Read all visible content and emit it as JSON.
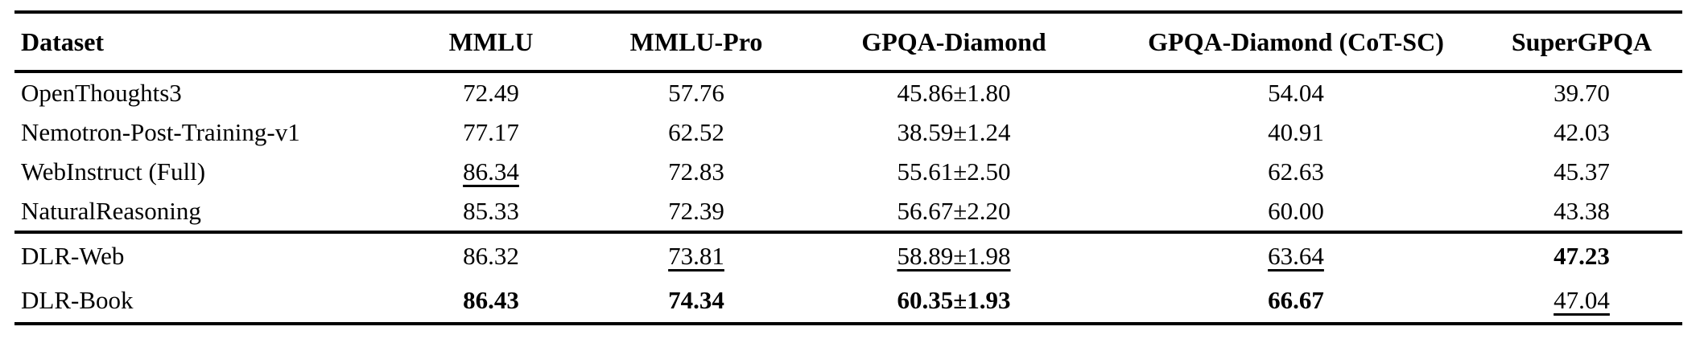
{
  "table": {
    "columns": [
      "Dataset",
      "MMLU",
      "MMLU-Pro",
      "GPQA-Diamond",
      "GPQA-Diamond (CoT-SC)",
      "SuperGPQA"
    ],
    "groups": [
      {
        "name": "baseline-datasets",
        "rows": [
          {
            "cells": [
              {
                "v": "OpenThoughts3"
              },
              {
                "v": "72.49"
              },
              {
                "v": "57.76"
              },
              {
                "v": "45.86±1.80"
              },
              {
                "v": "54.04"
              },
              {
                "v": "39.70"
              }
            ]
          },
          {
            "cells": [
              {
                "v": "Nemotron-Post-Training-v1"
              },
              {
                "v": "77.17"
              },
              {
                "v": "62.52"
              },
              {
                "v": "38.59±1.24"
              },
              {
                "v": "40.91"
              },
              {
                "v": "42.03"
              }
            ]
          },
          {
            "cells": [
              {
                "v": "WebInstruct (Full)"
              },
              {
                "v": "86.34",
                "e": "underline"
              },
              {
                "v": "72.83"
              },
              {
                "v": "55.61±2.50"
              },
              {
                "v": "62.63"
              },
              {
                "v": "45.37"
              }
            ]
          },
          {
            "cells": [
              {
                "v": "NaturalReasoning"
              },
              {
                "v": "85.33"
              },
              {
                "v": "72.39"
              },
              {
                "v": "56.67±2.20"
              },
              {
                "v": "60.00"
              },
              {
                "v": "43.38"
              }
            ]
          }
        ]
      },
      {
        "name": "dlr-datasets",
        "rows": [
          {
            "cells": [
              {
                "v": "DLR-Web"
              },
              {
                "v": "86.32"
              },
              {
                "v": "73.81",
                "e": "underline"
              },
              {
                "v": "58.89±1.98",
                "e": "underline"
              },
              {
                "v": "63.64",
                "e": "underline"
              },
              {
                "v": "47.23",
                "e": "bold"
              }
            ]
          },
          {
            "cells": [
              {
                "v": "DLR-Book"
              },
              {
                "v": "86.43",
                "e": "bold"
              },
              {
                "v": "74.34",
                "e": "bold"
              },
              {
                "v": "60.35±1.93",
                "e": "bold"
              },
              {
                "v": "66.67",
                "e": "bold"
              },
              {
                "v": "47.04",
                "e": "underline"
              }
            ]
          }
        ]
      }
    ]
  }
}
